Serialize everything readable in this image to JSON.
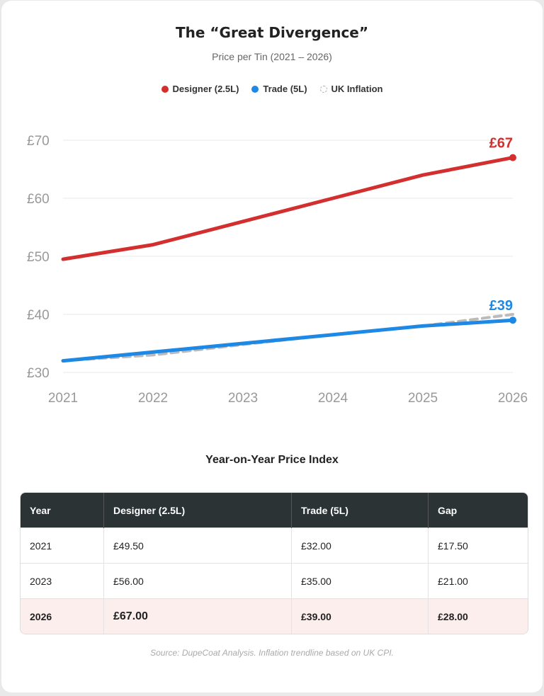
{
  "header": {
    "title": "The “Great Divergence”",
    "subtitle": "Price per Tin (2021 – 2026)"
  },
  "legend": [
    {
      "label": "Designer (2.5L)",
      "color": "#d32f2f"
    },
    {
      "label": "Trade (5L)",
      "color": "#1e88e5"
    },
    {
      "label": "UK Inflation",
      "color": "#bbbbbb"
    }
  ],
  "chart_data": {
    "type": "line",
    "title": "The “Great Divergence”",
    "subtitle": "Price per Tin (2021 – 2026)",
    "x": [
      "2021",
      "2022",
      "2023",
      "2024",
      "2025",
      "2026"
    ],
    "yticks": [
      "£30",
      "£40",
      "£50",
      "£60",
      "£70"
    ],
    "ylim": [
      30,
      70
    ],
    "series": [
      {
        "name": "Designer (2.5L)",
        "color": "#d32f2f",
        "style": "solid",
        "values": [
          49.5,
          52,
          56,
          60,
          64,
          67
        ],
        "end_label": "£67"
      },
      {
        "name": "Trade (5L)",
        "color": "#1e88e5",
        "style": "solid",
        "values": [
          32,
          33.5,
          35,
          36.5,
          38,
          39
        ],
        "end_label": "£39"
      },
      {
        "name": "UK Inflation",
        "color": "#bbbbbb",
        "style": "dashed",
        "values": [
          32,
          33,
          34.8,
          36.5,
          38,
          40
        ]
      }
    ]
  },
  "table": {
    "title": "Year-on-Year Price Index",
    "headers": [
      "Year",
      "Designer (2.5L)",
      "Trade (5L)",
      "Gap"
    ],
    "rows": [
      [
        "2021",
        "£49.50",
        "£32.00",
        "£17.50"
      ],
      [
        "2023",
        "£56.00",
        "£35.00",
        "£21.00"
      ],
      [
        "2026",
        "£67.00",
        "£39.00",
        "£28.00"
      ]
    ]
  },
  "footer": {
    "source": "Source: DupeCoat Analysis. Inflation trendline based on UK CPI."
  }
}
